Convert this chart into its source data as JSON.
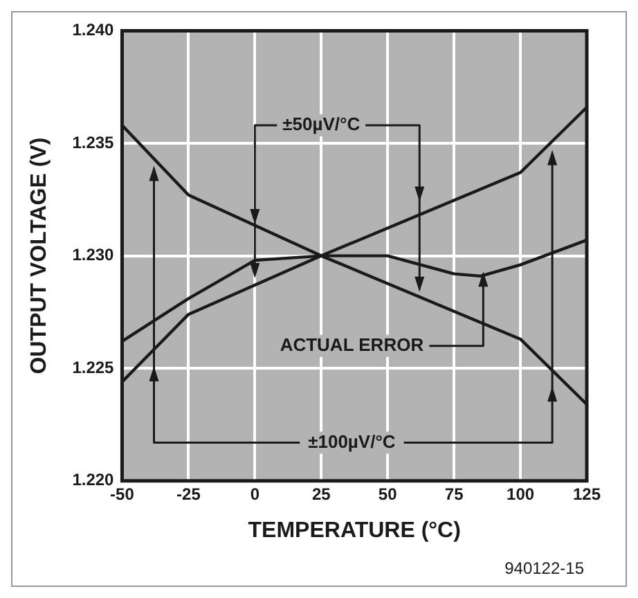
{
  "chart_data": {
    "type": "line",
    "xlabel": "TEMPERATURE (°C)",
    "ylabel": "OUTPUT VOLTAGE (V)",
    "xlim": [
      -50,
      125
    ],
    "xticks": [
      -50,
      -25,
      0,
      25,
      50,
      75,
      100,
      125
    ],
    "ylim": [
      1.22,
      1.24
    ],
    "yticks": [
      {
        "value": 1.22,
        "label": "1.220"
      },
      1.225,
      {
        "value": 1.23,
        "label": "1.230"
      },
      1.235,
      {
        "value": 1.24,
        "label": "1.240"
      }
    ],
    "grid": true,
    "legend": false,
    "marker": "none",
    "line_style": "solid",
    "annotations": [
      {
        "text": "±50µV/°C",
        "x": 0,
        "y": 1.229
      },
      {
        "text": "ACTUAL ERROR",
        "x": 86,
        "y": 1.2293
      },
      {
        "text": "±100µV/°C",
        "x": 112,
        "y": 1.2347
      },
      "940122-15"
    ],
    "series": [
      {
        "color": "#1a1a1a",
        "x": [
          -50,
          -25,
          25,
          100,
          125
        ],
        "values": [
          1.2358,
          1.2327,
          1.23,
          1.2263,
          1.2234
        ]
      },
      {
        "color": "#1a1a1a",
        "x": [
          -50,
          -25,
          25,
          100,
          125
        ],
        "values": [
          1.2244,
          1.2274,
          1.23,
          1.2337,
          1.2366
        ]
      },
      {
        "color": "#1a1a1a",
        "x": [
          -50,
          -25,
          0,
          25,
          50,
          75,
          85,
          100,
          125
        ],
        "values": [
          1.2262,
          1.2281,
          1.2298,
          1.23,
          1.23,
          1.2292,
          1.2291,
          1.2296,
          1.2307
        ]
      }
    ]
  }
}
